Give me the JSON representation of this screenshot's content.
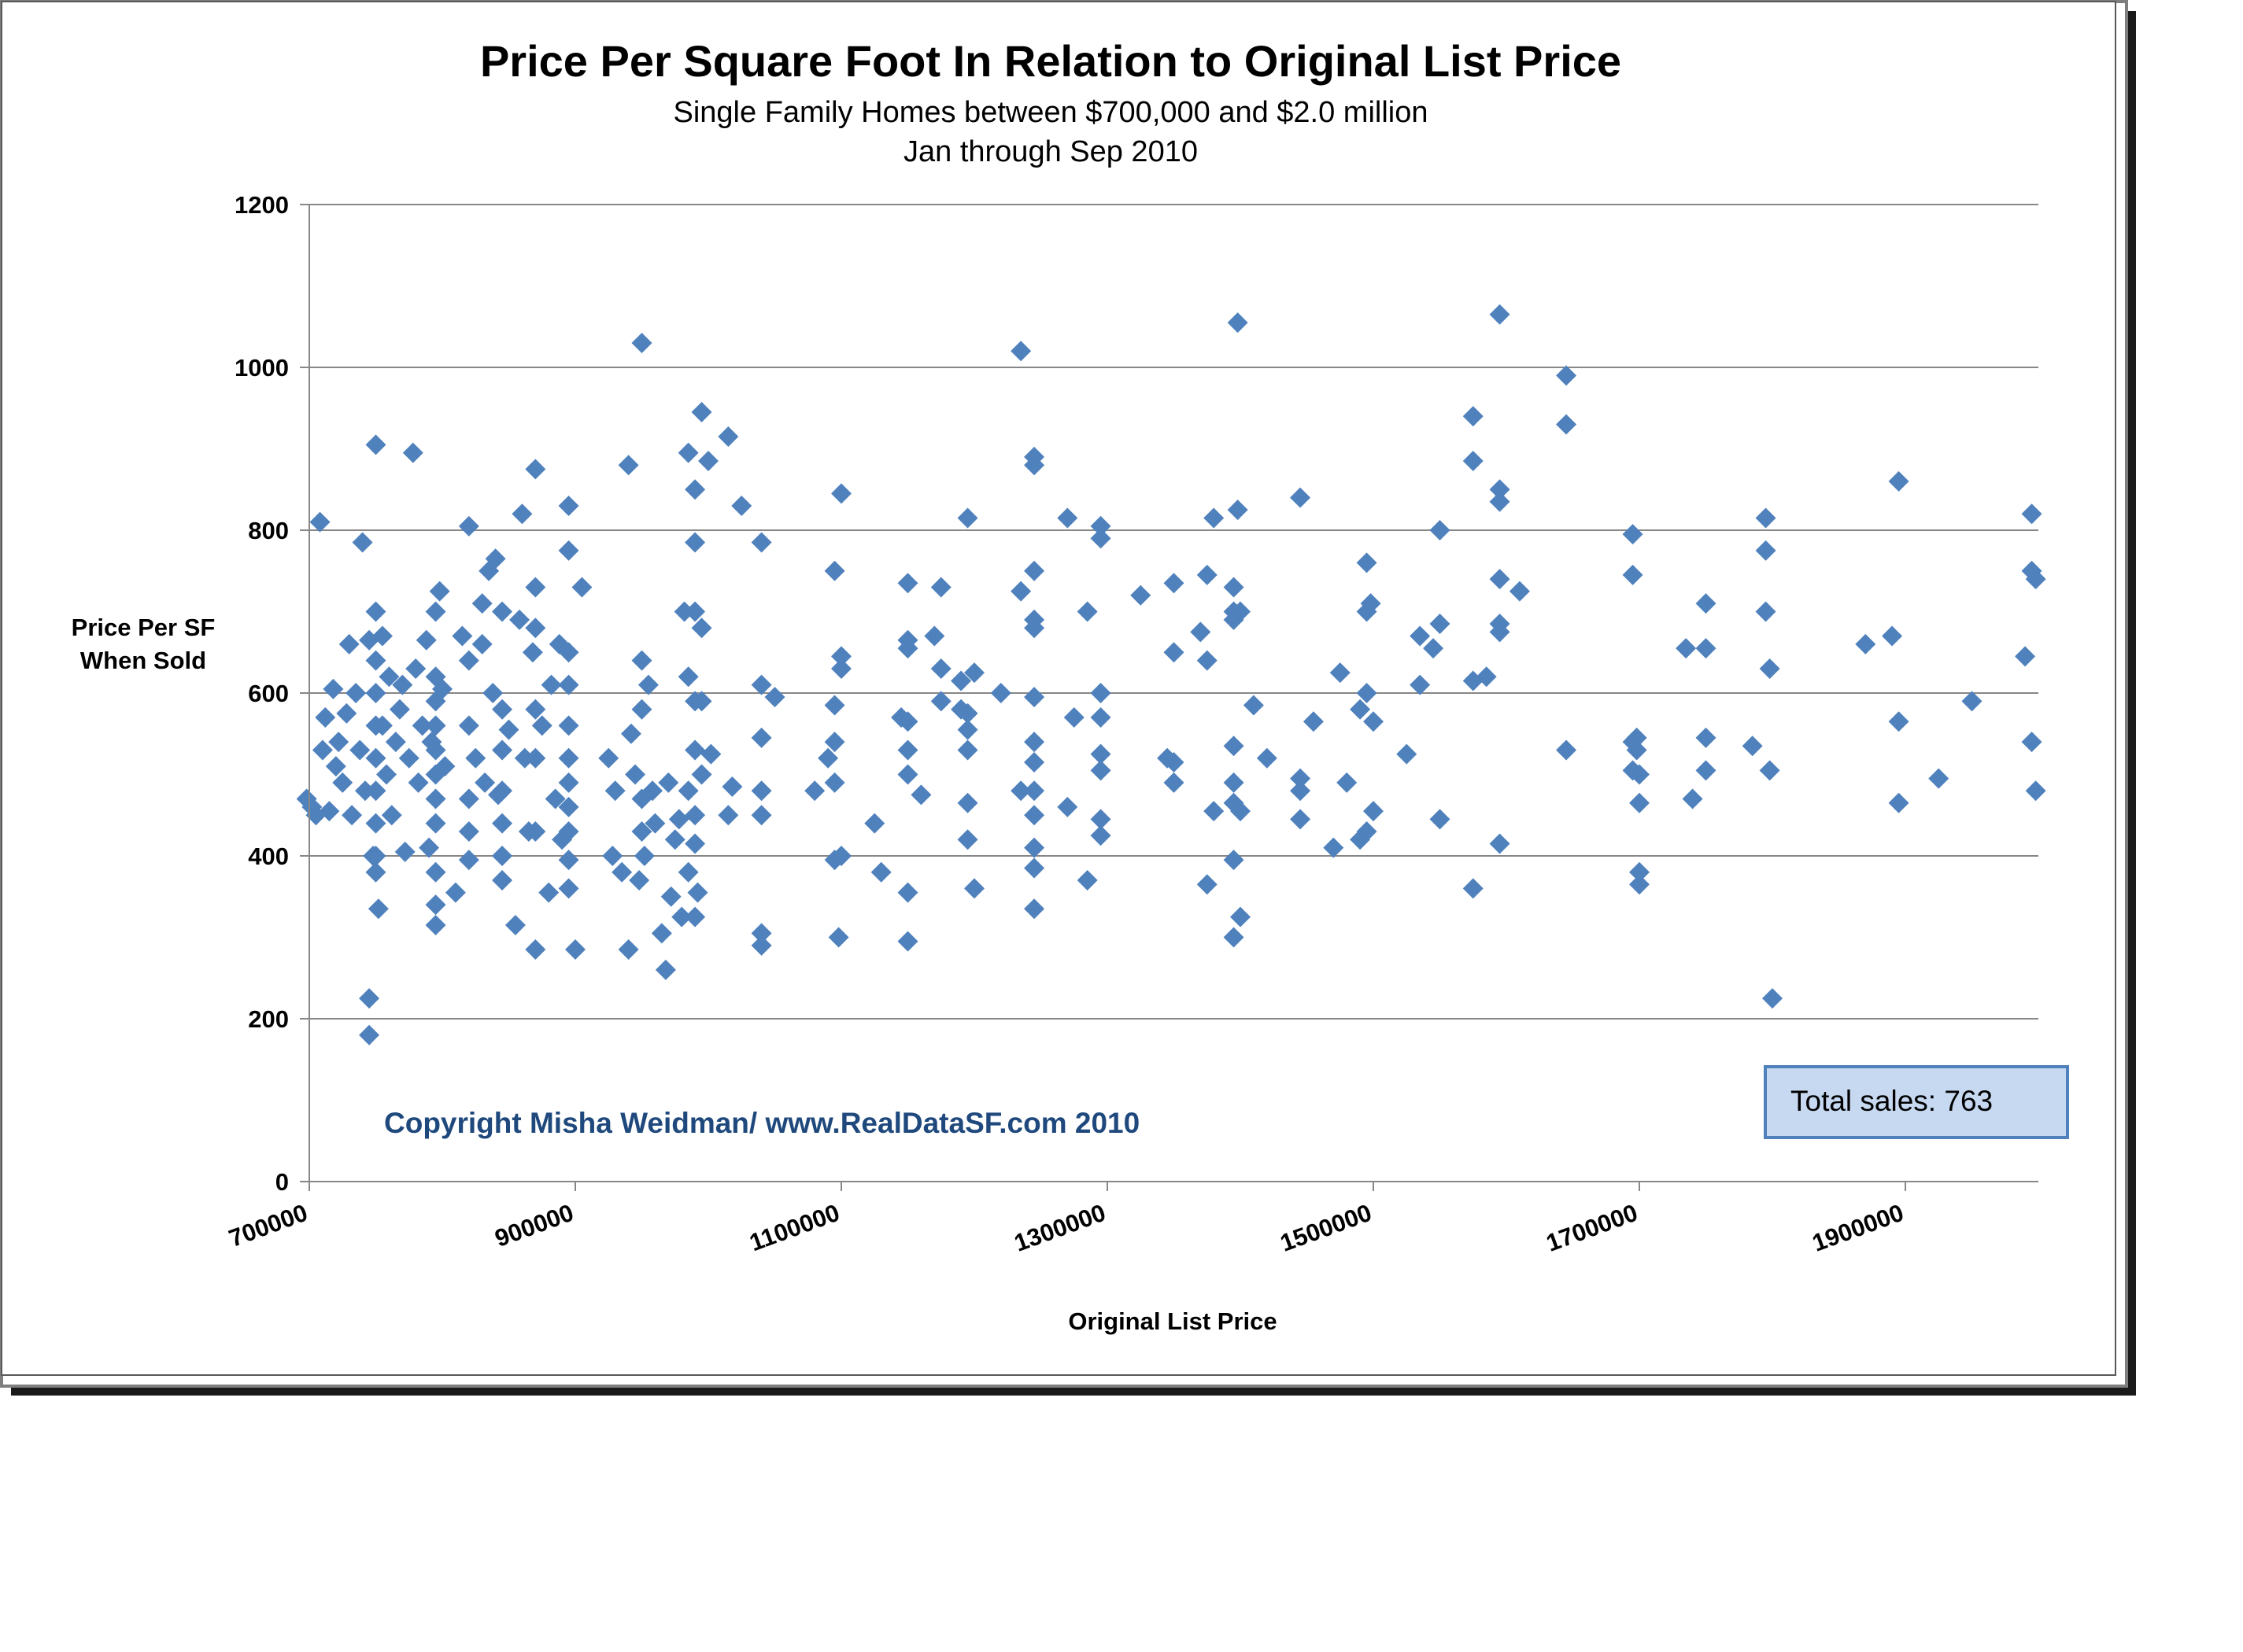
{
  "chart_data": {
    "type": "scatter",
    "title": "Price Per Square Foot In Relation to Original List Price",
    "subtitle": [
      "Single Family Homes between $700,000 and $2.0 million",
      "Jan through Sep 2010"
    ],
    "xlabel": "Original List Price",
    "ylabel": [
      "Price Per SF",
      "When Sold"
    ],
    "xlim": [
      700000,
      2000000
    ],
    "ylim": [
      0,
      1200
    ],
    "x_ticks": [
      "700000",
      "900000",
      "1100000",
      "1300000",
      "1500000",
      "1700000",
      "1900000"
    ],
    "y_ticks": [
      "0",
      "200",
      "400",
      "600",
      "800",
      "1000",
      "1200"
    ],
    "grid": "horizontal",
    "marker": "diamond",
    "point_color": "#4F81BD",
    "points": [
      [
        698000,
        470
      ],
      [
        702000,
        460
      ],
      [
        705000,
        450
      ],
      [
        708000,
        810
      ],
      [
        710000,
        530
      ],
      [
        712000,
        570
      ],
      [
        715000,
        455
      ],
      [
        718000,
        605
      ],
      [
        720000,
        510
      ],
      [
        722000,
        540
      ],
      [
        725000,
        490
      ],
      [
        728000,
        575
      ],
      [
        730000,
        660
      ],
      [
        732000,
        450
      ],
      [
        735000,
        600
      ],
      [
        738000,
        530
      ],
      [
        740000,
        785
      ],
      [
        742000,
        480
      ],
      [
        745000,
        665
      ],
      [
        748000,
        400
      ],
      [
        745000,
        180
      ],
      [
        745000,
        225
      ],
      [
        750000,
        905
      ],
      [
        750000,
        700
      ],
      [
        750000,
        640
      ],
      [
        750000,
        600
      ],
      [
        750000,
        560
      ],
      [
        750000,
        520
      ],
      [
        750000,
        480
      ],
      [
        750000,
        440
      ],
      [
        750000,
        400
      ],
      [
        750000,
        380
      ],
      [
        752000,
        335
      ],
      [
        755000,
        670
      ],
      [
        755000,
        560
      ],
      [
        758000,
        500
      ],
      [
        760000,
        620
      ],
      [
        762000,
        450
      ],
      [
        765000,
        540
      ],
      [
        768000,
        580
      ],
      [
        770000,
        610
      ],
      [
        772000,
        405
      ],
      [
        775000,
        520
      ],
      [
        778000,
        895
      ],
      [
        780000,
        630
      ],
      [
        782000,
        490
      ],
      [
        785000,
        560
      ],
      [
        788000,
        665
      ],
      [
        790000,
        410
      ],
      [
        792000,
        540
      ],
      [
        795000,
        700
      ],
      [
        795000,
        620
      ],
      [
        795000,
        590
      ],
      [
        795000,
        560
      ],
      [
        795000,
        530
      ],
      [
        795000,
        500
      ],
      [
        795000,
        470
      ],
      [
        795000,
        440
      ],
      [
        795000,
        380
      ],
      [
        795000,
        340
      ],
      [
        795000,
        315
      ],
      [
        798000,
        725
      ],
      [
        800000,
        605
      ],
      [
        802000,
        510
      ],
      [
        810000,
        355
      ],
      [
        815000,
        670
      ],
      [
        820000,
        805
      ],
      [
        820000,
        640
      ],
      [
        820000,
        560
      ],
      [
        820000,
        470
      ],
      [
        820000,
        430
      ],
      [
        820000,
        395
      ],
      [
        825000,
        520
      ],
      [
        830000,
        710
      ],
      [
        830000,
        660
      ],
      [
        832000,
        490
      ],
      [
        835000,
        750
      ],
      [
        838000,
        600
      ],
      [
        840000,
        765
      ],
      [
        842000,
        475
      ],
      [
        845000,
        700
      ],
      [
        845000,
        580
      ],
      [
        845000,
        530
      ],
      [
        845000,
        480
      ],
      [
        845000,
        440
      ],
      [
        845000,
        400
      ],
      [
        845000,
        370
      ],
      [
        850000,
        555
      ],
      [
        855000,
        315
      ],
      [
        858000,
        690
      ],
      [
        860000,
        820
      ],
      [
        862000,
        520
      ],
      [
        865000,
        430
      ],
      [
        868000,
        650
      ],
      [
        870000,
        875
      ],
      [
        870000,
        730
      ],
      [
        870000,
        680
      ],
      [
        870000,
        580
      ],
      [
        870000,
        520
      ],
      [
        870000,
        430
      ],
      [
        870000,
        285
      ],
      [
        875000,
        560
      ],
      [
        880000,
        355
      ],
      [
        882000,
        610
      ],
      [
        885000,
        470
      ],
      [
        888000,
        660
      ],
      [
        890000,
        420
      ],
      [
        895000,
        830
      ],
      [
        895000,
        775
      ],
      [
        895000,
        650
      ],
      [
        895000,
        610
      ],
      [
        895000,
        560
      ],
      [
        895000,
        520
      ],
      [
        895000,
        490
      ],
      [
        895000,
        460
      ],
      [
        895000,
        430
      ],
      [
        895000,
        395
      ],
      [
        895000,
        360
      ],
      [
        900000,
        285
      ],
      [
        905000,
        730
      ],
      [
        925000,
        520
      ],
      [
        928000,
        400
      ],
      [
        930000,
        480
      ],
      [
        935000,
        380
      ],
      [
        940000,
        880
      ],
      [
        940000,
        285
      ],
      [
        942000,
        550
      ],
      [
        945000,
        500
      ],
      [
        948000,
        370
      ],
      [
        950000,
        1030
      ],
      [
        950000,
        640
      ],
      [
        950000,
        580
      ],
      [
        950000,
        470
      ],
      [
        950000,
        430
      ],
      [
        952000,
        400
      ],
      [
        955000,
        610
      ],
      [
        958000,
        480
      ],
      [
        960000,
        440
      ],
      [
        965000,
        305
      ],
      [
        968000,
        260
      ],
      [
        970000,
        490
      ],
      [
        972000,
        350
      ],
      [
        975000,
        420
      ],
      [
        978000,
        445
      ],
      [
        980000,
        325
      ],
      [
        982000,
        700
      ],
      [
        985000,
        895
      ],
      [
        985000,
        620
      ],
      [
        985000,
        480
      ],
      [
        985000,
        380
      ],
      [
        990000,
        850
      ],
      [
        990000,
        785
      ],
      [
        990000,
        700
      ],
      [
        990000,
        590
      ],
      [
        990000,
        530
      ],
      [
        990000,
        450
      ],
      [
        990000,
        415
      ],
      [
        990000,
        325
      ],
      [
        992000,
        355
      ],
      [
        995000,
        945
      ],
      [
        995000,
        680
      ],
      [
        995000,
        590
      ],
      [
        995000,
        500
      ],
      [
        1000000,
        885
      ],
      [
        1002000,
        525
      ],
      [
        1015000,
        915
      ],
      [
        1015000,
        450
      ],
      [
        1018000,
        485
      ],
      [
        1025000,
        830
      ],
      [
        1040000,
        785
      ],
      [
        1040000,
        610
      ],
      [
        1040000,
        545
      ],
      [
        1040000,
        480
      ],
      [
        1040000,
        450
      ],
      [
        1040000,
        305
      ],
      [
        1040000,
        290
      ],
      [
        1050000,
        595
      ],
      [
        1080000,
        480
      ],
      [
        1090000,
        520
      ],
      [
        1095000,
        750
      ],
      [
        1095000,
        585
      ],
      [
        1095000,
        540
      ],
      [
        1095000,
        490
      ],
      [
        1095000,
        395
      ],
      [
        1098000,
        300
      ],
      [
        1100000,
        845
      ],
      [
        1100000,
        645
      ],
      [
        1100000,
        630
      ],
      [
        1100000,
        400
      ],
      [
        1125000,
        440
      ],
      [
        1130000,
        380
      ],
      [
        1145000,
        570
      ],
      [
        1150000,
        735
      ],
      [
        1150000,
        665
      ],
      [
        1150000,
        655
      ],
      [
        1150000,
        565
      ],
      [
        1150000,
        530
      ],
      [
        1150000,
        500
      ],
      [
        1150000,
        355
      ],
      [
        1150000,
        295
      ],
      [
        1160000,
        475
      ],
      [
        1170000,
        670
      ],
      [
        1175000,
        730
      ],
      [
        1175000,
        630
      ],
      [
        1175000,
        590
      ],
      [
        1190000,
        615
      ],
      [
        1190000,
        580
      ],
      [
        1195000,
        815
      ],
      [
        1195000,
        575
      ],
      [
        1195000,
        555
      ],
      [
        1195000,
        530
      ],
      [
        1195000,
        465
      ],
      [
        1195000,
        420
      ],
      [
        1200000,
        625
      ],
      [
        1200000,
        360
      ],
      [
        1220000,
        600
      ],
      [
        1235000,
        1020
      ],
      [
        1235000,
        725
      ],
      [
        1235000,
        480
      ],
      [
        1245000,
        890
      ],
      [
        1245000,
        880
      ],
      [
        1245000,
        750
      ],
      [
        1245000,
        690
      ],
      [
        1245000,
        680
      ],
      [
        1245000,
        595
      ],
      [
        1245000,
        540
      ],
      [
        1245000,
        515
      ],
      [
        1245000,
        480
      ],
      [
        1245000,
        450
      ],
      [
        1245000,
        410
      ],
      [
        1245000,
        385
      ],
      [
        1245000,
        335
      ],
      [
        1270000,
        815
      ],
      [
        1270000,
        460
      ],
      [
        1275000,
        570
      ],
      [
        1285000,
        700
      ],
      [
        1285000,
        370
      ],
      [
        1295000,
        805
      ],
      [
        1295000,
        790
      ],
      [
        1295000,
        600
      ],
      [
        1295000,
        570
      ],
      [
        1295000,
        525
      ],
      [
        1295000,
        505
      ],
      [
        1295000,
        445
      ],
      [
        1295000,
        425
      ],
      [
        1325000,
        720
      ],
      [
        1345000,
        520
      ],
      [
        1350000,
        735
      ],
      [
        1350000,
        650
      ],
      [
        1350000,
        515
      ],
      [
        1350000,
        490
      ],
      [
        1370000,
        675
      ],
      [
        1375000,
        745
      ],
      [
        1375000,
        640
      ],
      [
        1375000,
        365
      ],
      [
        1380000,
        815
      ],
      [
        1380000,
        455
      ],
      [
        1395000,
        730
      ],
      [
        1395000,
        700
      ],
      [
        1395000,
        690
      ],
      [
        1395000,
        535
      ],
      [
        1395000,
        490
      ],
      [
        1395000,
        465
      ],
      [
        1395000,
        395
      ],
      [
        1395000,
        300
      ],
      [
        1398000,
        1055
      ],
      [
        1398000,
        825
      ],
      [
        1400000,
        700
      ],
      [
        1400000,
        455
      ],
      [
        1400000,
        325
      ],
      [
        1410000,
        585
      ],
      [
        1420000,
        520
      ],
      [
        1445000,
        840
      ],
      [
        1445000,
        495
      ],
      [
        1445000,
        480
      ],
      [
        1445000,
        445
      ],
      [
        1455000,
        565
      ],
      [
        1470000,
        410
      ],
      [
        1475000,
        625
      ],
      [
        1480000,
        490
      ],
      [
        1490000,
        580
      ],
      [
        1490000,
        420
      ],
      [
        1495000,
        760
      ],
      [
        1495000,
        700
      ],
      [
        1495000,
        600
      ],
      [
        1495000,
        430
      ],
      [
        1498000,
        710
      ],
      [
        1500000,
        565
      ],
      [
        1500000,
        455
      ],
      [
        1525000,
        525
      ],
      [
        1535000,
        670
      ],
      [
        1535000,
        610
      ],
      [
        1545000,
        655
      ],
      [
        1550000,
        800
      ],
      [
        1550000,
        685
      ],
      [
        1550000,
        445
      ],
      [
        1575000,
        940
      ],
      [
        1575000,
        885
      ],
      [
        1575000,
        615
      ],
      [
        1575000,
        360
      ],
      [
        1585000,
        620
      ],
      [
        1595000,
        1065
      ],
      [
        1595000,
        850
      ],
      [
        1595000,
        835
      ],
      [
        1595000,
        740
      ],
      [
        1595000,
        685
      ],
      [
        1595000,
        675
      ],
      [
        1595000,
        415
      ],
      [
        1610000,
        725
      ],
      [
        1645000,
        990
      ],
      [
        1645000,
        930
      ],
      [
        1645000,
        530
      ],
      [
        1695000,
        795
      ],
      [
        1695000,
        745
      ],
      [
        1695000,
        540
      ],
      [
        1695000,
        505
      ],
      [
        1698000,
        545
      ],
      [
        1698000,
        530
      ],
      [
        1700000,
        500
      ],
      [
        1700000,
        465
      ],
      [
        1700000,
        380
      ],
      [
        1700000,
        365
      ],
      [
        1735000,
        655
      ],
      [
        1740000,
        470
      ],
      [
        1750000,
        710
      ],
      [
        1750000,
        655
      ],
      [
        1750000,
        545
      ],
      [
        1750000,
        505
      ],
      [
        1785000,
        535
      ],
      [
        1795000,
        815
      ],
      [
        1795000,
        775
      ],
      [
        1795000,
        700
      ],
      [
        1798000,
        630
      ],
      [
        1798000,
        505
      ],
      [
        1800000,
        225
      ],
      [
        1870000,
        660
      ],
      [
        1890000,
        670
      ],
      [
        1895000,
        860
      ],
      [
        1895000,
        565
      ],
      [
        1895000,
        465
      ],
      [
        1925000,
        495
      ],
      [
        1950000,
        590
      ],
      [
        1990000,
        645
      ],
      [
        1995000,
        820
      ],
      [
        1995000,
        750
      ],
      [
        1995000,
        540
      ],
      [
        1998000,
        740
      ],
      [
        1998000,
        480
      ]
    ],
    "annotations": [
      "Copyright Misha Weidman/ www.RealDataSF.com 2010",
      "Total sales: 763"
    ]
  },
  "colors": {
    "point": "#4F81BD",
    "copyright": "#1F497D",
    "totalbox_fill": "#C6D9F1",
    "totalbox_border": "#4F81BD",
    "grid": "#878787"
  }
}
